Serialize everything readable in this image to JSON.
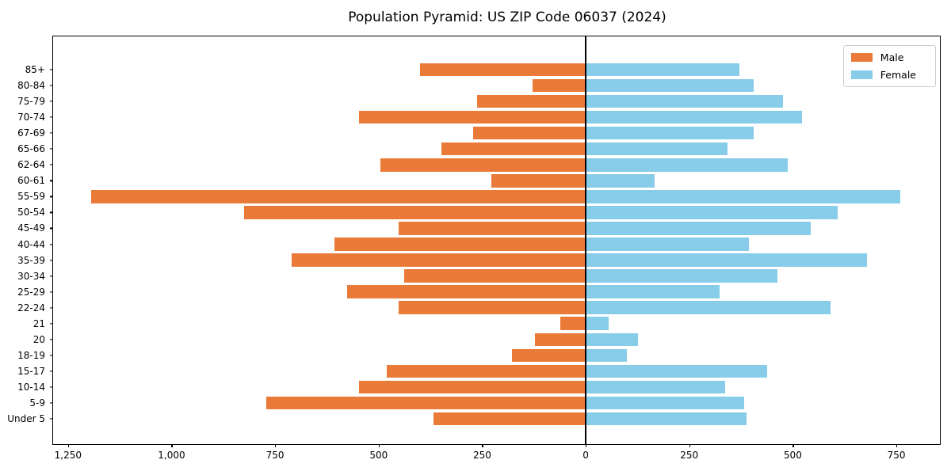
{
  "chart_data": {
    "type": "bar",
    "variant": "population-pyramid-horizontal",
    "title": "Population Pyramid: US ZIP Code 06037 (2024)",
    "categories": [
      "85+",
      "80-84",
      "75-79",
      "70-74",
      "67-69",
      "65-66",
      "62-64",
      "60-61",
      "55-59",
      "50-54",
      "45-49",
      "40-44",
      "35-39",
      "30-34",
      "25-29",
      "22-24",
      "21",
      "20",
      "18-19",
      "15-17",
      "10-14",
      "5-9",
      "Under 5"
    ],
    "series": [
      {
        "name": "Male",
        "side": "left",
        "color": "#EA7A38",
        "values": [
          400,
          128,
          262,
          547,
          272,
          348,
          495,
          227,
          1194,
          825,
          452,
          606,
          710,
          439,
          576,
          452,
          61,
          122,
          178,
          481,
          548,
          772,
          368
        ]
      },
      {
        "name": "Female",
        "side": "right",
        "color": "#87CCE8",
        "values": [
          372,
          406,
          476,
          522,
          406,
          342,
          487,
          166,
          759,
          608,
          544,
          395,
          680,
          463,
          323,
          592,
          55,
          126,
          100,
          439,
          337,
          383,
          388
        ]
      }
    ],
    "x_axis": {
      "tick_values": [
        -1250,
        -1000,
        -750,
        -500,
        -250,
        0,
        250,
        500,
        750
      ],
      "tick_labels": [
        "1,250",
        "1,000",
        "750",
        "500",
        "250",
        "0",
        "250",
        "500",
        "750"
      ],
      "xlim": [
        -1286,
        859
      ]
    },
    "legend": {
      "position": "upper right",
      "entries": [
        "Male",
        "Female"
      ]
    },
    "zero_line_color": "#000000",
    "grid": false
  }
}
